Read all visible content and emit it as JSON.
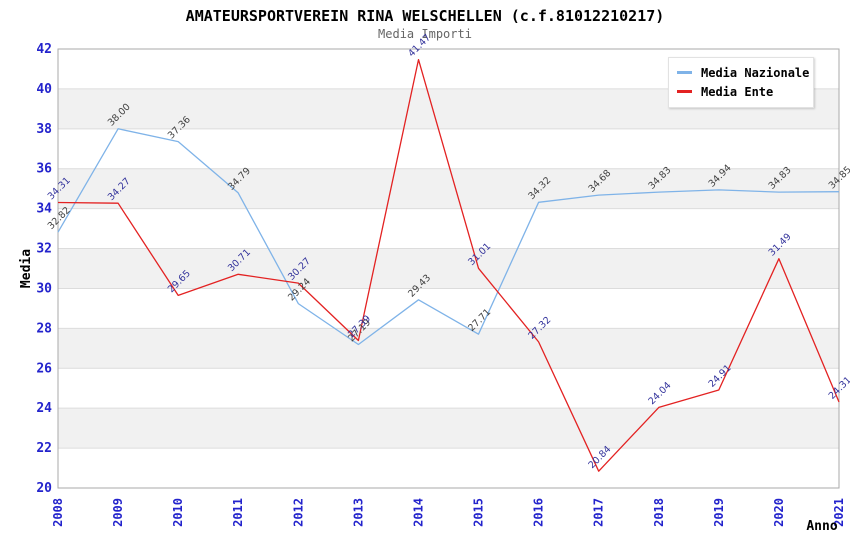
{
  "chart_data": {
    "type": "line",
    "title": "AMATEURSPORTVEREIN RINA WELSCHELLEN (c.f.81012210217)",
    "subtitle": "Media Importi",
    "xlabel": "Anno",
    "ylabel": "Media",
    "x": [
      2008,
      2009,
      2010,
      2011,
      2012,
      2013,
      2014,
      2015,
      2016,
      2017,
      2018,
      2019,
      2020,
      2021
    ],
    "ylim": [
      20,
      42
    ],
    "ytick_step": 2,
    "yticks": [
      20,
      22,
      24,
      26,
      28,
      30,
      32,
      34,
      36,
      38,
      40,
      42
    ],
    "grid": true,
    "alternating_bands": true,
    "legend_position": "top-right",
    "series": [
      {
        "name": "Media Nazionale",
        "color": "#7fb3e8",
        "label_color": "#3f3f3f",
        "values": [
          32.82,
          38.0,
          37.36,
          34.79,
          29.24,
          27.19,
          29.43,
          27.71,
          34.32,
          34.68,
          34.83,
          34.94,
          34.83,
          34.85
        ]
      },
      {
        "name": "Media Ente",
        "color": "#e32222",
        "label_color": "#32329b",
        "values": [
          34.31,
          34.27,
          29.65,
          30.71,
          30.27,
          27.39,
          41.47,
          31.01,
          27.32,
          20.84,
          24.04,
          24.91,
          31.49,
          24.31
        ]
      }
    ],
    "colors": {
      "tick_label": "#2323cc",
      "axis_label": "#000000",
      "band": "#f1f1f1",
      "grid": "#dcdcdc",
      "border": "#aaaaaa",
      "title": "#000000",
      "subtitle": "#666666",
      "background": "#ffffff"
    }
  }
}
